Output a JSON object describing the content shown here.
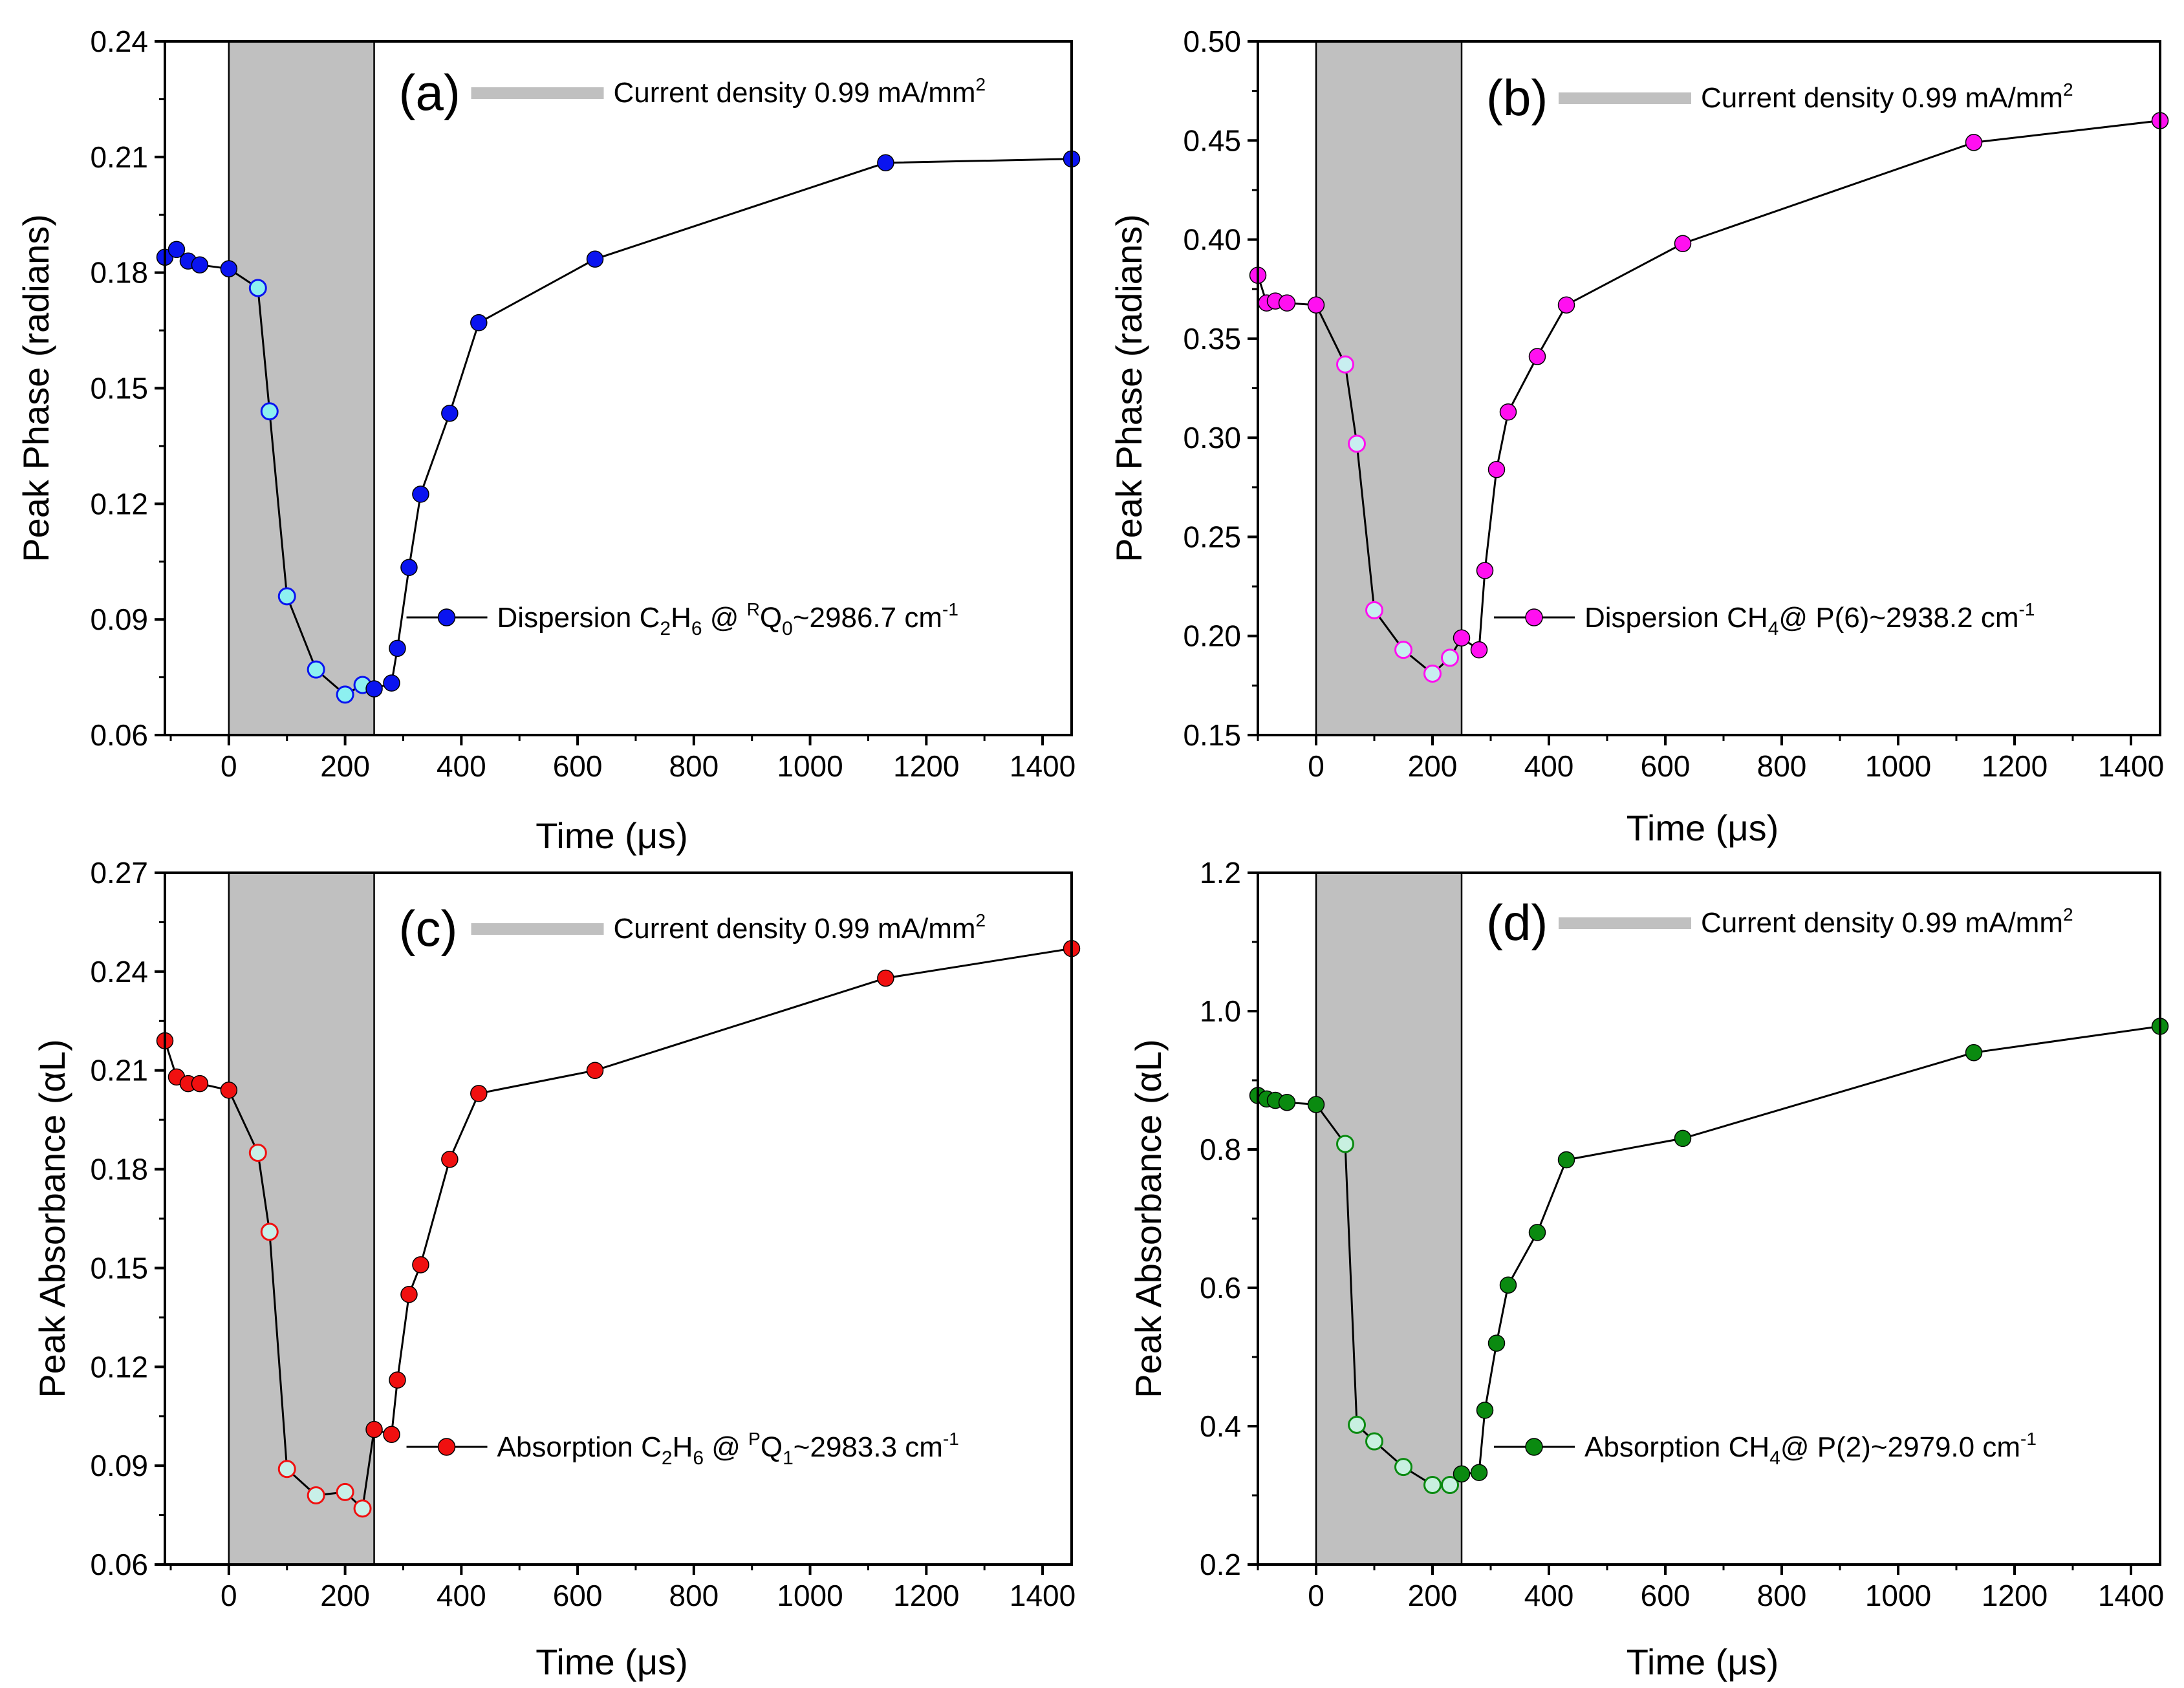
{
  "chart_data": [
    {
      "type": "line",
      "panel_label": "(a)",
      "xlabel": "Time (μs)",
      "ylabel": "Peak Phase (radians)",
      "xlim": [
        -110,
        1450
      ],
      "ylim": [
        0.06,
        0.24
      ],
      "x_ticks": [
        "0",
        "200",
        "400",
        "600",
        "800",
        "1000",
        "1200",
        "1400"
      ],
      "y_ticks": [
        "0.06",
        "0.09",
        "0.12",
        "0.15",
        "0.18",
        "0.21",
        "0.24"
      ],
      "shaded_region": [
        0,
        250
      ],
      "legend_current": {
        "prefix": "Current density 0.99 mA/mm",
        "sup": "2"
      },
      "legend_series": [
        {
          "t": "Dispersion C"
        },
        {
          "t": "2",
          "sub": true
        },
        {
          "t": "H"
        },
        {
          "t": "6",
          "sub": true
        },
        {
          "t": " @ "
        },
        {
          "t": "R",
          "sup": true
        },
        {
          "t": "Q"
        },
        {
          "t": "0",
          "sub": true
        },
        {
          "t": "~2986.7 cm"
        },
        {
          "t": "-1",
          "sup": true
        }
      ],
      "marker_color": "#0a14f0",
      "highlight_color": "#8df0f0",
      "series": [
        {
          "name": "Dispersion C2H6 @ RQ0~2986.7 cm-1",
          "x": [
            -110,
            -90,
            -70,
            -50,
            0,
            50,
            70,
            100,
            150,
            200,
            230,
            250,
            280,
            290,
            310,
            330,
            380,
            430,
            630,
            1130,
            1450
          ],
          "y": [
            0.184,
            0.186,
            0.183,
            0.182,
            0.181,
            0.176,
            0.144,
            0.096,
            0.077,
            0.0705,
            0.073,
            0.072,
            0.0735,
            0.0825,
            0.1035,
            0.1225,
            0.1435,
            0.167,
            0.1835,
            0.2085,
            0.2095
          ],
          "highlighted": [
            false,
            false,
            false,
            false,
            false,
            true,
            true,
            true,
            true,
            true,
            true,
            false,
            false,
            false,
            false,
            false,
            false,
            false,
            false,
            false,
            false
          ]
        }
      ]
    },
    {
      "type": "line",
      "panel_label": "(b)",
      "xlabel": "Time (μs)",
      "ylabel": "Peak Phase (radians)",
      "xlim": [
        -100,
        1450
      ],
      "ylim": [
        0.15,
        0.5
      ],
      "x_ticks": [
        "0",
        "200",
        "400",
        "600",
        "800",
        "1000",
        "1200",
        "1400"
      ],
      "y_ticks": [
        "0.15",
        "0.20",
        "0.25",
        "0.30",
        "0.35",
        "0.40",
        "0.45",
        "0.50"
      ],
      "shaded_region": [
        0,
        250
      ],
      "legend_current": {
        "prefix": "Current density 0.99 mA/mm",
        "sup": "2"
      },
      "legend_series": [
        {
          "t": "Dispersion CH"
        },
        {
          "t": "4",
          "sub": true
        },
        {
          "t": "@ P(6)~2938.2 cm"
        },
        {
          "t": "-1",
          "sup": true
        }
      ],
      "marker_color": "#ff10f0",
      "highlight_color": "#c8eef0",
      "series": [
        {
          "name": "Dispersion CH4@ P(6)~2938.2 cm-1",
          "x": [
            -100,
            -85,
            -70,
            -50,
            0,
            50,
            70,
            100,
            150,
            200,
            230,
            250,
            280,
            290,
            310,
            330,
            380,
            430,
            630,
            1130,
            1450
          ],
          "y": [
            0.382,
            0.368,
            0.369,
            0.368,
            0.367,
            0.337,
            0.297,
            0.213,
            0.193,
            0.181,
            0.189,
            0.199,
            0.193,
            0.233,
            0.284,
            0.313,
            0.341,
            0.367,
            0.398,
            0.449,
            0.46
          ],
          "highlighted": [
            false,
            false,
            false,
            false,
            false,
            true,
            true,
            true,
            true,
            true,
            true,
            false,
            false,
            false,
            false,
            false,
            false,
            false,
            false,
            false,
            false
          ]
        }
      ]
    },
    {
      "type": "line",
      "panel_label": "(c)",
      "xlabel": "Time (μs)",
      "ylabel": "Peak Absorbance (αL)",
      "xlim": [
        -110,
        1450
      ],
      "ylim": [
        0.06,
        0.27
      ],
      "x_ticks": [
        "0",
        "200",
        "400",
        "600",
        "800",
        "1000",
        "1200",
        "1400"
      ],
      "y_ticks": [
        "0.06",
        "0.09",
        "0.12",
        "0.15",
        "0.18",
        "0.21",
        "0.24",
        "0.27"
      ],
      "shaded_region": [
        0,
        250
      ],
      "legend_current": {
        "prefix": "Current density 0.99 mA/mm",
        "sup": "2"
      },
      "legend_series": [
        {
          "t": "Absorption C"
        },
        {
          "t": "2",
          "sub": true
        },
        {
          "t": "H"
        },
        {
          "t": "6",
          "sub": true
        },
        {
          "t": " @ "
        },
        {
          "t": "P",
          "sup": true
        },
        {
          "t": "Q"
        },
        {
          "t": "1",
          "sub": true
        },
        {
          "t": "~2983.3 cm"
        },
        {
          "t": "-1",
          "sup": true
        }
      ],
      "marker_color": "#f01010",
      "highlight_color": "#c8f0e8",
      "series": [
        {
          "name": "Absorption C2H6 @ PQ1~2983.3 cm-1",
          "x": [
            -110,
            -90,
            -70,
            -50,
            0,
            50,
            70,
            100,
            150,
            200,
            230,
            250,
            280,
            290,
            310,
            330,
            380,
            430,
            630,
            1130,
            1450
          ],
          "y": [
            0.219,
            0.208,
            0.206,
            0.206,
            0.204,
            0.185,
            0.161,
            0.089,
            0.081,
            0.082,
            0.077,
            0.101,
            0.0995,
            0.116,
            0.142,
            0.151,
            0.183,
            0.203,
            0.21,
            0.238,
            0.247
          ],
          "highlighted": [
            false,
            false,
            false,
            false,
            false,
            true,
            true,
            true,
            true,
            true,
            true,
            false,
            false,
            false,
            false,
            false,
            false,
            false,
            false,
            false,
            false
          ]
        }
      ]
    },
    {
      "type": "line",
      "panel_label": "(d)",
      "xlabel": "Time (μs)",
      "ylabel": "Peak Absorbance (αL)",
      "xlim": [
        -100,
        1450
      ],
      "ylim": [
        0.2,
        1.2
      ],
      "x_ticks": [
        "0",
        "200",
        "400",
        "600",
        "800",
        "1000",
        "1200",
        "1400"
      ],
      "y_ticks": [
        "0.2",
        "0.4",
        "0.6",
        "0.8",
        "1.0",
        "1.2"
      ],
      "shaded_region": [
        0,
        250
      ],
      "legend_current": {
        "prefix": "Current density 0.99 mA/mm",
        "sup": "2"
      },
      "legend_series": [
        {
          "t": "Absorption CH"
        },
        {
          "t": "4",
          "sub": true
        },
        {
          "t": "@ P(2)~2979.0 cm"
        },
        {
          "t": "-1",
          "sup": true
        }
      ],
      "marker_color": "#0a8a10",
      "highlight_color": "#c8f0e0",
      "series": [
        {
          "name": "Absorption CH4@ P(2)~2979.0 cm-1",
          "x": [
            -100,
            -85,
            -70,
            -50,
            0,
            50,
            70,
            100,
            150,
            200,
            230,
            250,
            280,
            290,
            310,
            330,
            380,
            430,
            630,
            1130,
            1450
          ],
          "y": [
            0.878,
            0.873,
            0.871,
            0.868,
            0.865,
            0.808,
            0.402,
            0.378,
            0.341,
            0.315,
            0.315,
            0.331,
            0.333,
            0.423,
            0.52,
            0.604,
            0.68,
            0.785,
            0.816,
            0.94,
            0.978
          ],
          "highlighted": [
            false,
            false,
            false,
            false,
            false,
            true,
            true,
            true,
            true,
            true,
            true,
            false,
            false,
            false,
            false,
            false,
            false,
            false,
            false,
            false,
            false
          ]
        }
      ]
    }
  ]
}
